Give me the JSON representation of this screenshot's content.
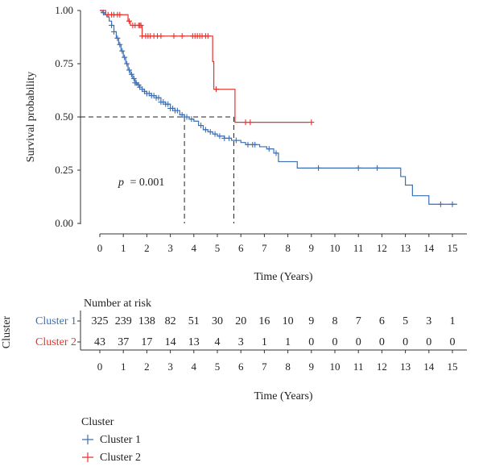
{
  "chart_data": {
    "type": "line",
    "subtype": "kaplan-meier survival curve",
    "xlabel": "Time (Years)",
    "ylabel": "Survival probability",
    "xlim": [
      0,
      15
    ],
    "ylim": [
      0,
      1
    ],
    "x_ticks": [
      "0",
      "1",
      "2",
      "3",
      "4",
      "5",
      "6",
      "7",
      "8",
      "9",
      "10",
      "11",
      "12",
      "13",
      "14",
      "15"
    ],
    "y_ticks": [
      "0.00",
      "0.25",
      "0.50",
      "0.75",
      "1.00"
    ],
    "annotation_p_label": "p",
    "annotation_p_value": "= 0.001",
    "median_survival": [
      {
        "series": "Cluster 1",
        "x": 3.6,
        "y": 0.5
      },
      {
        "series": "Cluster 2",
        "x": 5.7,
        "y": 0.5
      }
    ],
    "series": [
      {
        "name": "Cluster 1",
        "color": "#3a6fb5",
        "steps": [
          [
            0,
            1.0
          ],
          [
            0.1,
            0.99
          ],
          [
            0.2,
            0.98
          ],
          [
            0.3,
            0.97
          ],
          [
            0.4,
            0.95
          ],
          [
            0.5,
            0.93
          ],
          [
            0.6,
            0.9
          ],
          [
            0.7,
            0.87
          ],
          [
            0.8,
            0.84
          ],
          [
            0.9,
            0.81
          ],
          [
            1.0,
            0.78
          ],
          [
            1.1,
            0.75
          ],
          [
            1.2,
            0.72
          ],
          [
            1.3,
            0.7
          ],
          [
            1.4,
            0.68
          ],
          [
            1.5,
            0.66
          ],
          [
            1.6,
            0.65
          ],
          [
            1.7,
            0.64
          ],
          [
            1.8,
            0.63
          ],
          [
            1.9,
            0.62
          ],
          [
            2.0,
            0.61
          ],
          [
            2.2,
            0.6
          ],
          [
            2.4,
            0.59
          ],
          [
            2.6,
            0.57
          ],
          [
            2.8,
            0.56
          ],
          [
            3.0,
            0.54
          ],
          [
            3.2,
            0.53
          ],
          [
            3.4,
            0.51
          ],
          [
            3.6,
            0.5
          ],
          [
            3.8,
            0.49
          ],
          [
            4.0,
            0.48
          ],
          [
            4.2,
            0.46
          ],
          [
            4.4,
            0.44
          ],
          [
            4.6,
            0.43
          ],
          [
            4.8,
            0.42
          ],
          [
            5.0,
            0.41
          ],
          [
            5.3,
            0.4
          ],
          [
            5.6,
            0.39
          ],
          [
            6.0,
            0.38
          ],
          [
            6.2,
            0.37
          ],
          [
            6.8,
            0.36
          ],
          [
            7.1,
            0.35
          ],
          [
            7.4,
            0.33
          ],
          [
            7.6,
            0.29
          ],
          [
            8.4,
            0.26
          ],
          [
            12.0,
            0.26
          ],
          [
            12.8,
            0.22
          ],
          [
            13.0,
            0.18
          ],
          [
            13.3,
            0.13
          ],
          [
            14.0,
            0.09
          ],
          [
            15.2,
            0.09
          ]
        ],
        "censor_x": [
          0.15,
          0.5,
          0.6,
          0.75,
          0.85,
          0.95,
          1.05,
          1.15,
          1.25,
          1.35,
          1.45,
          1.5,
          1.55,
          1.65,
          1.7,
          1.8,
          1.9,
          2.0,
          2.1,
          2.2,
          2.3,
          2.4,
          2.5,
          2.6,
          2.7,
          2.8,
          2.9,
          3.0,
          3.1,
          3.2,
          3.3,
          3.5,
          3.6,
          3.7,
          3.9,
          4.3,
          4.5,
          4.7,
          4.9,
          5.1,
          5.3,
          5.5,
          5.8,
          6.3,
          6.5,
          6.6,
          7.2,
          7.5,
          9.3,
          11.0,
          11.8,
          14.5,
          15.0
        ]
      },
      {
        "name": "Cluster 2",
        "color": "#e8322e",
        "steps": [
          [
            0,
            1.0
          ],
          [
            0.1,
            1.0
          ],
          [
            0.25,
            0.98
          ],
          [
            1.2,
            0.95
          ],
          [
            1.3,
            0.93
          ],
          [
            1.6,
            0.93
          ],
          [
            1.8,
            0.88
          ],
          [
            4.75,
            0.88
          ],
          [
            4.8,
            0.76
          ],
          [
            4.85,
            0.63
          ],
          [
            5.7,
            0.63
          ],
          [
            5.75,
            0.475
          ],
          [
            8.9,
            0.475
          ]
        ],
        "censor_x": [
          0.35,
          0.5,
          0.6,
          0.75,
          0.85,
          1.25,
          1.4,
          1.5,
          1.65,
          1.7,
          1.75,
          1.8,
          1.95,
          2.05,
          2.15,
          2.3,
          2.45,
          2.6,
          3.15,
          3.5,
          3.95,
          4.05,
          4.15,
          4.25,
          4.35,
          4.5,
          4.6,
          4.95,
          6.2,
          6.4,
          9.0
        ]
      }
    ],
    "risk_table": {
      "title": "Number at risk",
      "row_header": "Cluster",
      "xlabel": "Time (Years)",
      "rows": [
        {
          "name": "Cluster 1",
          "color": "#3a6fb5",
          "values": [
            "325",
            "239",
            "138",
            "82",
            "51",
            "30",
            "20",
            "16",
            "10",
            "9",
            "8",
            "7",
            "6",
            "5",
            "3",
            "1"
          ]
        },
        {
          "name": "Cluster 2",
          "color": "#e8322e",
          "values": [
            "43",
            "37",
            "17",
            "14",
            "13",
            "4",
            "3",
            "1",
            "1",
            "0",
            "0",
            "0",
            "0",
            "0",
            "0",
            "0"
          ]
        }
      ]
    },
    "legend": {
      "title": "Cluster",
      "position": "bottom-left",
      "entries": [
        {
          "label": "Cluster 1",
          "color": "#3a6fb5"
        },
        {
          "label": "Cluster 2",
          "color": "#e8322e"
        }
      ]
    }
  }
}
